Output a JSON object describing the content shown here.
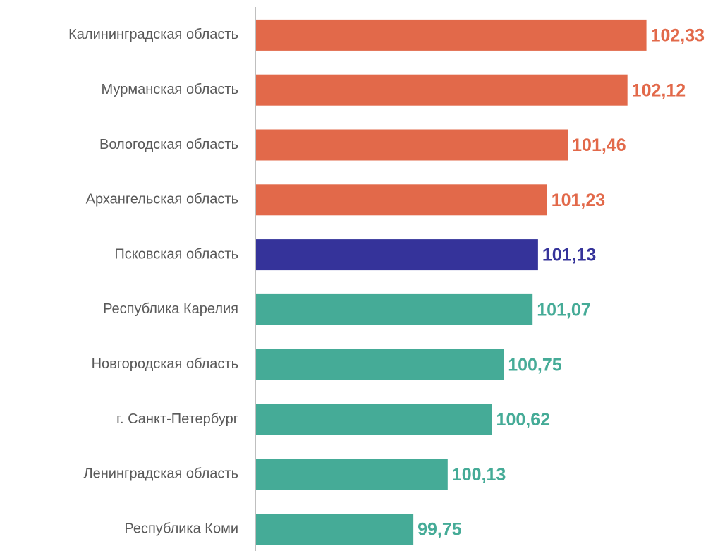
{
  "chart_data": {
    "type": "bar",
    "orientation": "horizontal",
    "categories": [
      "Калининградская область",
      "Мурманская область",
      "Вологодская область",
      "Архангельская область",
      "Псковская область",
      "Республика Карелия",
      "Новгородская область",
      "г. Санкт-Петербург",
      "Ленинградская область",
      "Республика Коми"
    ],
    "values": [
      102.33,
      102.12,
      101.46,
      101.23,
      101.13,
      101.07,
      100.75,
      100.62,
      100.13,
      99.75
    ],
    "value_labels": [
      "102,33",
      "102,12",
      "101,46",
      "101,23",
      "101,13",
      "101,07",
      "100,75",
      "100,62",
      "100,13",
      "99,75"
    ],
    "colors": [
      "#e2694a",
      "#e2694a",
      "#e2694a",
      "#e2694a",
      "#35339a",
      "#45ab97",
      "#45ab97",
      "#45ab97",
      "#45ab97",
      "#45ab97"
    ],
    "xlim": [
      98,
      103.2
    ]
  }
}
